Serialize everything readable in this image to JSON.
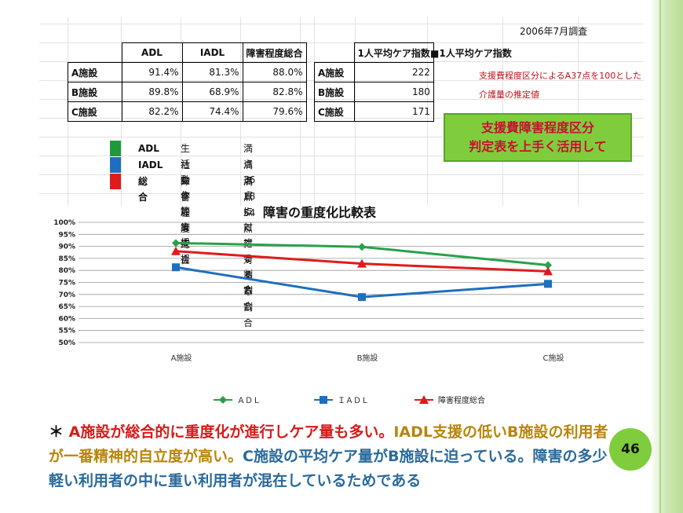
{
  "survey_date": "2006年7月調査",
  "table1": {
    "headers": [
      "ADL",
      "IADL",
      "障害程度総合"
    ],
    "rows": [
      {
        "facility": "A施設",
        "adl": "91.4%",
        "iadl": "81.3%",
        "total": "88.0%"
      },
      {
        "facility": "B施設",
        "adl": "89.8%",
        "iadl": "68.9%",
        "total": "82.8%"
      },
      {
        "facility": "C施設",
        "adl": "82.2%",
        "iadl": "74.4%",
        "total": "79.6%"
      }
    ]
  },
  "table2": {
    "header": "1人平均ケア指数",
    "rows": [
      {
        "facility": "A施設",
        "value": "222"
      },
      {
        "facility": "B施設",
        "value": "180"
      },
      {
        "facility": "C施設",
        "value": "171"
      }
    ],
    "legend_label": "■1人平均ケア指数",
    "note_line1": "支援費程度区分によるA37点を100とした",
    "note_line2": "介護量の推定値"
  },
  "green_box": {
    "line1": "支援費障害程度区分",
    "line2": "判定表を上手く活用して"
  },
  "key": [
    {
      "label": "ADL",
      "desc": "生活動作等支援",
      "score": "満点36点に対する割合",
      "color": "#1e9a3c"
    },
    {
      "label": "IADL",
      "desc": "社会参加等支援",
      "score": "満点18点に対する割合",
      "color": "#1e6fbf"
    },
    {
      "label": "総合",
      "desc": "障害程度総合",
      "score": "満点54点に対する割合",
      "color": "#e01b1b"
    }
  ],
  "chart_data": {
    "type": "line",
    "title": "障害の重度化比較表",
    "categories": [
      "A施設",
      "B施設",
      "C施設"
    ],
    "series": [
      {
        "name": "ADL",
        "values": [
          91.4,
          89.8,
          82.2
        ],
        "color": "#27a24a",
        "marker": "diamond"
      },
      {
        "name": "IADL",
        "values": [
          81.3,
          68.9,
          74.4
        ],
        "color": "#1e6fbf",
        "marker": "square"
      },
      {
        "name": "障害程度総合",
        "values": [
          88.0,
          82.8,
          79.6
        ],
        "color": "#e01b1b",
        "marker": "triangle"
      }
    ],
    "ylim": [
      50,
      100
    ],
    "yticks": [
      "50%",
      "55%",
      "60%",
      "65%",
      "70%",
      "75%",
      "80%",
      "85%",
      "90%",
      "95%",
      "100%"
    ],
    "grid": true,
    "legend_position": "bottom"
  },
  "legend_labels": [
    "ＡＤＬ",
    "ＩＡＤＬ",
    "障害程度総合"
  ],
  "bottom_text": {
    "bullet": "＊",
    "part1": "A施設が総合的に重度化が進行しケア量も多い。",
    "part2": "IADL支援の低いB施設",
    "part3": "の利用者が一番精神的自立度が高い。",
    "part4": "C施設の平均ケア量がB施設に迫っている。障害の多少軽い利用者の中に重い利用者が混在しているためである"
  },
  "page_number": "46"
}
